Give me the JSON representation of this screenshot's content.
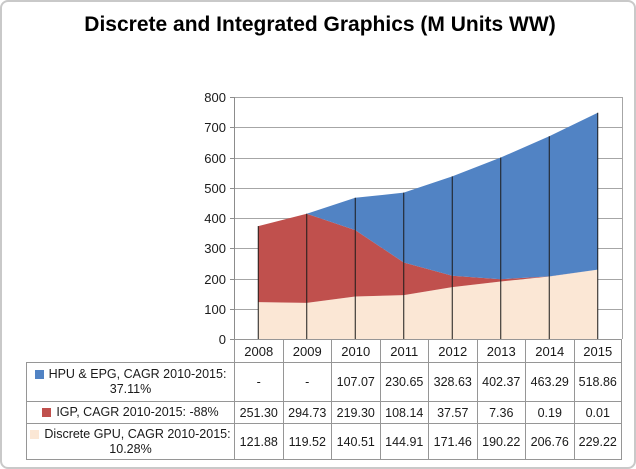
{
  "chart_data": {
    "type": "area",
    "stacked": true,
    "title": "Discrete and Integrated Graphics (M Units WW)",
    "categories": [
      "2008",
      "2009",
      "2010",
      "2011",
      "2012",
      "2013",
      "2014",
      "2015"
    ],
    "series": [
      {
        "name": "HPU & EPG, CAGR 2010-2015: 37.11%",
        "color": "#5183C4",
        "values": [
          null,
          null,
          107.07,
          230.65,
          328.63,
          402.37,
          463.29,
          518.86
        ],
        "display": [
          "-",
          "-",
          "107.07",
          "230.65",
          "328.63",
          "402.37",
          "463.29",
          "518.86"
        ]
      },
      {
        "name": "IGP, CAGR 2010-2015: -88%",
        "color": "#C0504D",
        "values": [
          251.3,
          294.73,
          219.3,
          108.14,
          37.57,
          7.36,
          0.19,
          0.01
        ],
        "display": [
          "251.30",
          "294.73",
          "219.30",
          "108.14",
          "37.57",
          "7.36",
          "0.19",
          "0.01"
        ]
      },
      {
        "name": "Discrete GPU, CAGR 2010-2015: 10.28%",
        "color": "#FBE7D5",
        "values": [
          121.88,
          119.52,
          140.51,
          144.91,
          171.46,
          190.22,
          206.76,
          229.22
        ],
        "display": [
          "121.88",
          "119.52",
          "140.51",
          "144.91",
          "171.46",
          "190.22",
          "206.76",
          "229.22"
        ]
      }
    ],
    "stack_order_bottom_to_top": [
      "Discrete GPU",
      "IGP",
      "HPU & EPG"
    ],
    "ylim": [
      0,
      800
    ],
    "ytick_step": 100,
    "yticks": [
      "0",
      "100",
      "200",
      "300",
      "400",
      "500",
      "600",
      "700",
      "800"
    ],
    "grid": true,
    "drop_lines": true,
    "legend_position": "data-table-left"
  },
  "colors": {
    "hpu_epg": "#5183C4",
    "igp": "#C0504D",
    "discrete_gpu": "#FBE7D5",
    "gridline": "#A6A6A6",
    "axis": "#8C8C8C",
    "drop_line": "#1a1a1a",
    "table_border": "#969696",
    "text": "#1a1a1a",
    "frame_border": "#C9C9C9",
    "background": "#FFFFFF"
  }
}
